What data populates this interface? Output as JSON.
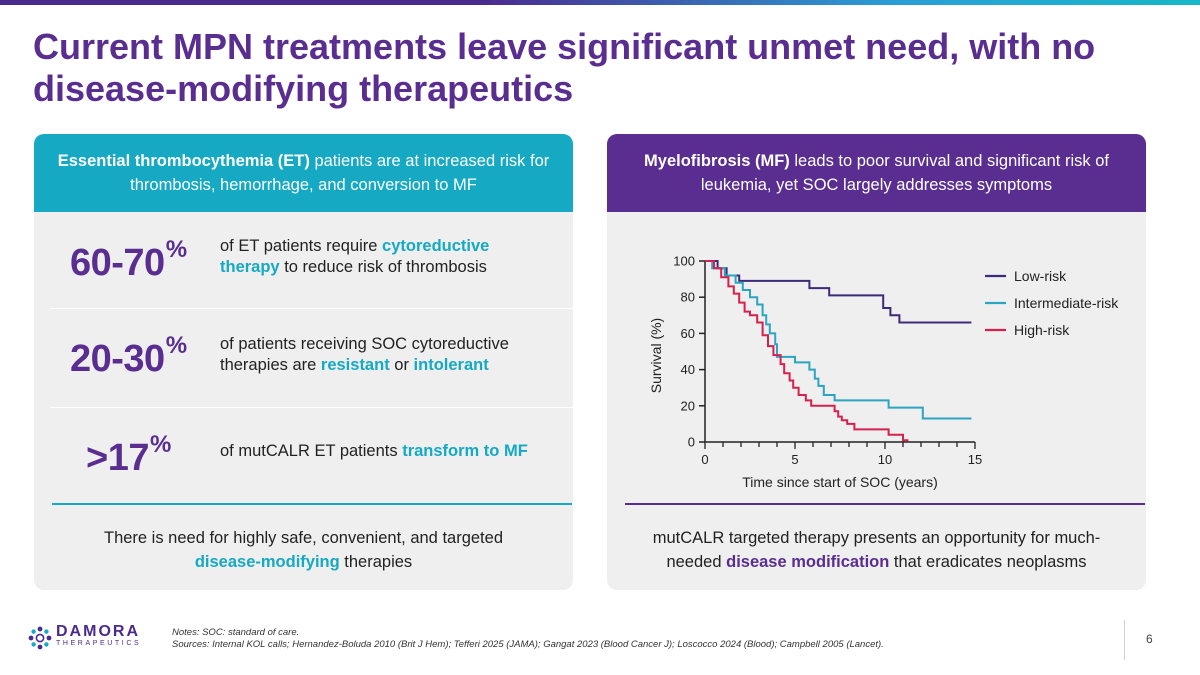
{
  "title": "Current MPN treatments leave significant unmet need, with no disease-modifying therapeutics",
  "colors": {
    "purple": "#5a2d91",
    "teal": "#15a9c4",
    "lowRisk": "#3d2a7a",
    "intermediateRisk": "#2aa5c2",
    "highRisk": "#d6204e"
  },
  "left_panel": {
    "header_bold": "Essential thrombocythemia (ET)",
    "header_rest": " patients are at increased risk for thrombosis, hemorrhage, and conversion to MF",
    "stats": [
      {
        "value": "60-70",
        "unit": "%",
        "d1": "of ET patients require ",
        "d2": "cytoreductive therapy",
        "d3": " to reduce risk of thrombosis"
      },
      {
        "value": "20-30",
        "unit": "%",
        "d1": "of patients receiving SOC cytoreductive therapies are ",
        "d2": "resistant",
        "d3": " or ",
        "d4": "intolerant"
      },
      {
        "value": ">17",
        "unit": "%",
        "d1": "of mutCALR ET patients ",
        "d2": "transform to MF"
      }
    ],
    "footer_pre": "There is need for highly safe, convenient, and targeted ",
    "footer_hl": "disease-modifying",
    "footer_post": " therapies"
  },
  "right_panel": {
    "header_bold": "Myelofibrosis (MF)",
    "header_rest": " leads to poor survival and significant risk of leukemia, yet SOC largely addresses symptoms",
    "footer_pre": "mutCALR targeted therapy presents an opportunity for much-needed ",
    "footer_hl": "disease modification",
    "footer_post": " that eradicates neoplasms"
  },
  "chart_data": {
    "type": "line",
    "step": true,
    "xlabel": "Time since start of SOC (years)",
    "ylabel": "Survival (%)",
    "xlim": [
      0,
      15
    ],
    "ylim": [
      0,
      100
    ],
    "xticks": [
      0,
      5,
      10,
      15
    ],
    "yticks": [
      0,
      20,
      40,
      60,
      80,
      100
    ],
    "legend_position": "top-right",
    "series": [
      {
        "name": "Low-risk",
        "color": "#3d2a7a",
        "points": [
          [
            0,
            100
          ],
          [
            0.7,
            100
          ],
          [
            0.7,
            96
          ],
          [
            1.2,
            96
          ],
          [
            1.2,
            92
          ],
          [
            1.9,
            92
          ],
          [
            1.9,
            89
          ],
          [
            5.8,
            89
          ],
          [
            5.8,
            85
          ],
          [
            6.9,
            85
          ],
          [
            6.9,
            81
          ],
          [
            9.9,
            81
          ],
          [
            9.9,
            74
          ],
          [
            10.3,
            74
          ],
          [
            10.3,
            70
          ],
          [
            10.8,
            70
          ],
          [
            10.8,
            66
          ],
          [
            14.8,
            66
          ]
        ]
      },
      {
        "name": "Intermediate-risk",
        "color": "#2aa5c2",
        "points": [
          [
            0,
            100
          ],
          [
            0.4,
            96
          ],
          [
            1.1,
            92
          ],
          [
            1.7,
            88
          ],
          [
            2.1,
            84
          ],
          [
            2.5,
            80
          ],
          [
            2.9,
            76
          ],
          [
            3.2,
            70
          ],
          [
            3.4,
            65
          ],
          [
            3.6,
            60
          ],
          [
            3.9,
            54
          ],
          [
            4,
            47
          ],
          [
            5,
            47
          ],
          [
            5,
            44
          ],
          [
            5.6,
            44
          ],
          [
            5.8,
            40
          ],
          [
            6.1,
            35
          ],
          [
            6.3,
            31
          ],
          [
            6.6,
            26
          ],
          [
            7.2,
            23
          ],
          [
            10.2,
            23
          ],
          [
            10.2,
            19
          ],
          [
            12.1,
            19
          ],
          [
            12.1,
            13
          ],
          [
            14.8,
            13
          ]
        ]
      },
      {
        "name": "High-risk",
        "color": "#d6204e",
        "points": [
          [
            0,
            100
          ],
          [
            0.5,
            96
          ],
          [
            0.9,
            91
          ],
          [
            1.3,
            86
          ],
          [
            1.6,
            82
          ],
          [
            1.9,
            77
          ],
          [
            2.2,
            72
          ],
          [
            2.5,
            70
          ],
          [
            2.9,
            66
          ],
          [
            3.2,
            59
          ],
          [
            3.5,
            53
          ],
          [
            3.8,
            48
          ],
          [
            4.2,
            43
          ],
          [
            4.4,
            38
          ],
          [
            4.7,
            34
          ],
          [
            4.9,
            30
          ],
          [
            5.2,
            26
          ],
          [
            5.6,
            23
          ],
          [
            5.9,
            20
          ],
          [
            6.9,
            20
          ],
          [
            7.2,
            17
          ],
          [
            7.4,
            14
          ],
          [
            7.6,
            12
          ],
          [
            7.9,
            10
          ],
          [
            8.3,
            10
          ],
          [
            8.3,
            7
          ],
          [
            10.2,
            7
          ],
          [
            10.2,
            4
          ],
          [
            11,
            4
          ],
          [
            11,
            1
          ],
          [
            11.3,
            1
          ]
        ]
      }
    ]
  },
  "notes": {
    "line1": "Notes: SOC: standard of care.",
    "line2": "Sources: Internal KOL calls; Hernandez-Boluda 2010 (Brit J Hem); Tefferi 2025 (JAMA); Gangat 2023 (Blood Cancer J); Loscocco 2024 (Blood); Campbell 2005 (Lancet)."
  },
  "logo": {
    "word": "DAMORA",
    "sub": "THERAPEUTICS"
  },
  "page_number": "6"
}
